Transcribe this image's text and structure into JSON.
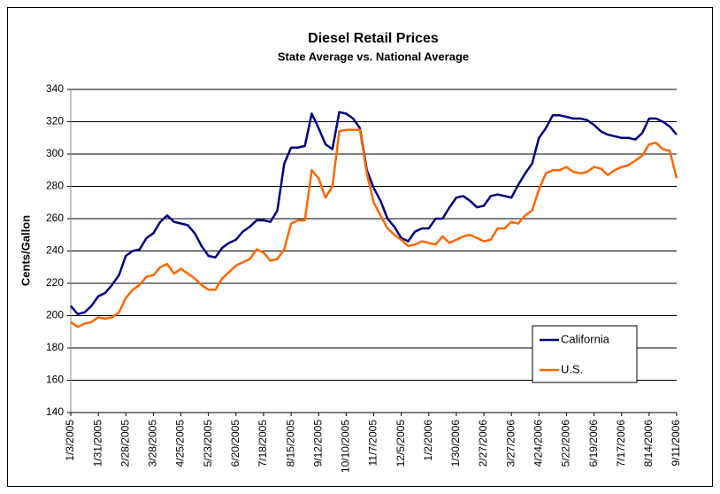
{
  "chart_data": {
    "type": "line",
    "title": "Diesel Retail Prices",
    "subtitle": "State Average vs. National Average",
    "y_label": "Cents/Gallon",
    "categories": [
      "1/3/2005",
      null,
      null,
      null,
      "1/31/2005",
      null,
      null,
      null,
      "2/28/2005",
      null,
      null,
      null,
      "3/28/2005",
      null,
      null,
      null,
      "4/25/2005",
      null,
      null,
      null,
      "5/23/2005",
      null,
      null,
      null,
      "6/20/2005",
      null,
      null,
      null,
      "7/18/2005",
      null,
      null,
      null,
      "8/15/2005",
      null,
      null,
      null,
      "9/12/2005",
      null,
      null,
      null,
      "10/10/2005",
      null,
      null,
      null,
      "11/7/2005",
      null,
      null,
      null,
      "12/5/2005",
      null,
      null,
      null,
      "1/2/2006",
      null,
      null,
      null,
      "1/30/2006",
      null,
      null,
      null,
      "2/27/2006",
      null,
      null,
      null,
      "3/27/2006",
      null,
      null,
      null,
      "4/24/2006",
      null,
      null,
      null,
      "5/22/2006",
      null,
      null,
      null,
      "6/19/2006",
      null,
      null,
      null,
      "7/17/2006",
      null,
      null,
      null,
      "8/14/2006",
      null,
      null,
      null,
      "9/11/2006"
    ],
    "series": [
      {
        "name": "California",
        "color": "#000080",
        "values": [
          206,
          201,
          202,
          206,
          212,
          214,
          219,
          225,
          237,
          240,
          241,
          248,
          251,
          258,
          262,
          258,
          257,
          256,
          251,
          243,
          237,
          236,
          242,
          245,
          247,
          252,
          255,
          259,
          259,
          258,
          265,
          294,
          304,
          304,
          305,
          325,
          316,
          306,
          303,
          326,
          325,
          322,
          316,
          290,
          279,
          271,
          260,
          255,
          248,
          246,
          252,
          254,
          254,
          260,
          260,
          267,
          273,
          274,
          271,
          267,
          268,
          274,
          275,
          274,
          273,
          281,
          288,
          294,
          310,
          316,
          324,
          324,
          323,
          322,
          322,
          321,
          318,
          314,
          312,
          311,
          310,
          310,
          309,
          313,
          322,
          322,
          320,
          317,
          312
        ]
      },
      {
        "name": "U.S.",
        "color": "#ff6600",
        "values": [
          196,
          193,
          195,
          196,
          199,
          198,
          199,
          202,
          211,
          216,
          219,
          224,
          225,
          230,
          232,
          226,
          229,
          226,
          223,
          219,
          216,
          216,
          223,
          227,
          231,
          233,
          235,
          241,
          239,
          234,
          235,
          241,
          257,
          259,
          259,
          290,
          285,
          273,
          280,
          314,
          315,
          315,
          315,
          288,
          270,
          262,
          254,
          250,
          247,
          243,
          244,
          246,
          245,
          244,
          249,
          245,
          247,
          249,
          250,
          248,
          246,
          247,
          254,
          254,
          258,
          257,
          262,
          265,
          278,
          288,
          290,
          290,
          292,
          289,
          288,
          289,
          292,
          291,
          287,
          290,
          292,
          293,
          296,
          299,
          306,
          307,
          303,
          302,
          285
        ]
      }
    ],
    "ylim": [
      140,
      340
    ],
    "yticks": [
      140,
      160,
      180,
      200,
      220,
      240,
      260,
      280,
      300,
      320,
      340
    ],
    "grid": true,
    "legend": "lower right"
  }
}
